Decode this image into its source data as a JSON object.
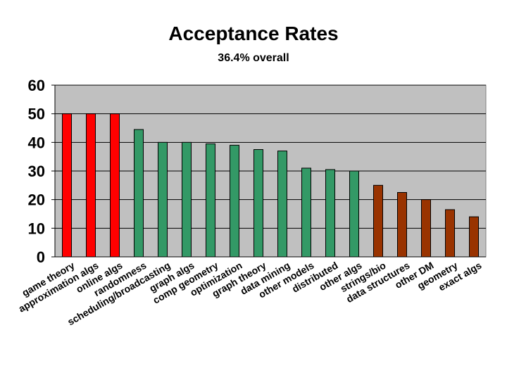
{
  "chart_data": {
    "type": "bar",
    "title": "Acceptance Rates",
    "subtitle": "36.4% overall",
    "xlabel": "",
    "ylabel": "",
    "ylim": [
      0,
      60
    ],
    "yticks": [
      "0",
      "10",
      "20",
      "30",
      "40",
      "50",
      "60"
    ],
    "grid": true,
    "categories": [
      "game theory",
      "approximation algs",
      "online algs",
      "randomness",
      "scheduling/broadcasting",
      "graph algs",
      "comp geometry",
      "optimization",
      "graph theory",
      "data mining",
      "other models",
      "distributed",
      "other algs",
      "strings/bio",
      "data structures",
      "other DM",
      "geometry",
      "exact algs"
    ],
    "values": [
      50,
      50,
      50,
      44.5,
      40,
      40,
      39.5,
      39,
      37.5,
      37,
      31,
      30.5,
      30,
      25,
      22.5,
      20,
      16.5,
      14
    ],
    "colors": [
      "#ff0000",
      "#ff0000",
      "#ff0000",
      "#339966",
      "#339966",
      "#339966",
      "#339966",
      "#339966",
      "#339966",
      "#339966",
      "#339966",
      "#339966",
      "#339966",
      "#993300",
      "#993300",
      "#993300",
      "#993300",
      "#993300"
    ],
    "plot_background": "#c0c0c0"
  }
}
